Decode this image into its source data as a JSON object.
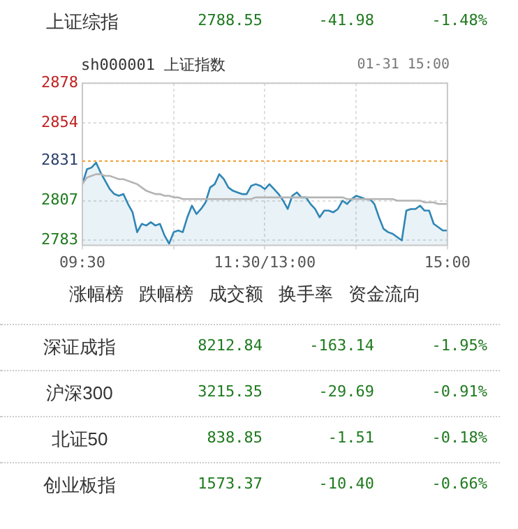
{
  "chart_data": [
    {
      "type": "other",
      "annotations": [
        "上证综指",
        "2788.55",
        "-41.98",
        "-1.48%"
      ]
    },
    {
      "type": "area",
      "title": "sh000001 上证指数",
      "annotations": [
        "01-31 15:00"
      ],
      "categories": [
        "09:30",
        null,
        null,
        null,
        null,
        null,
        null,
        null,
        null,
        null,
        null,
        null,
        null,
        null,
        null,
        null,
        null,
        null,
        null,
        null,
        null,
        null,
        null,
        null,
        null,
        null,
        null,
        null,
        null,
        null,
        null,
        null,
        null,
        null,
        null,
        null,
        null,
        null,
        null,
        null,
        "11:30/13:00",
        null,
        null,
        null,
        null,
        null,
        null,
        null,
        null,
        null,
        null,
        null,
        null,
        null,
        null,
        null,
        null,
        null,
        null,
        null,
        null,
        null,
        null,
        null,
        null,
        null,
        null,
        null,
        null,
        null,
        null,
        null,
        null,
        null,
        null,
        null,
        null,
        null,
        null,
        null,
        "15:00"
      ],
      "ylim": [
        2780,
        2878
      ],
      "yticks": [
        2783,
        2807,
        2831,
        2854,
        2878
      ],
      "grid": true,
      "marker": "none",
      "legend": false,
      "ref_lines": [
        {
          "axis": "y",
          "value": 2831,
          "color": "#f0a030",
          "line_style": "dashed"
        }
      ],
      "series": [
        {
          "type": "area",
          "color": "#2f86b5",
          "values": [
            2817,
            2826,
            2827,
            2830,
            2824,
            2819,
            2814,
            2811,
            2810,
            2811,
            2805,
            2800,
            2788,
            2793,
            2792,
            2794,
            2792,
            2793,
            2786,
            2781,
            2788,
            2789,
            2788,
            2797,
            2804,
            2799,
            2802,
            2806,
            2815,
            2817,
            2823,
            2820,
            2815,
            2813,
            2812,
            2811,
            2811,
            2816,
            2817,
            2816,
            2814,
            2817,
            2814,
            2811,
            2807,
            2802,
            2810,
            2812,
            2809,
            2809,
            2805,
            2802,
            2797,
            2801,
            2801,
            2800,
            2802,
            2807,
            2805,
            2808,
            2810,
            2809,
            2808,
            2808,
            2805,
            2797,
            2790,
            2788,
            2787,
            2785,
            2783,
            2801,
            2802,
            2802,
            2804,
            2801,
            2801,
            2793,
            2791,
            2789,
            2789
          ]
        },
        {
          "type": "line",
          "color": "#b4b4b4",
          "values": [
            2817,
            2821,
            2822,
            2823,
            2823,
            2822,
            2822,
            2821,
            2820,
            2820,
            2819,
            2818,
            2817,
            2815,
            2813,
            2812,
            2811,
            2811,
            2810,
            2810,
            2809,
            2809,
            2808,
            2808,
            2808,
            2808,
            2808,
            2808,
            2808,
            2808,
            2808,
            2808,
            2808,
            2808,
            2808,
            2808,
            2808,
            2808,
            2809,
            2809,
            2809,
            2809,
            2809,
            2809,
            2809,
            2809,
            2809,
            2809,
            2809,
            2809,
            2809,
            2809,
            2809,
            2809,
            2809,
            2809,
            2809,
            2809,
            2808,
            2808,
            2808,
            2808,
            2808,
            2808,
            2808,
            2808,
            2808,
            2808,
            2808,
            2807,
            2807,
            2807,
            2807,
            2807,
            2807,
            2806,
            2806,
            2806,
            2805,
            2805,
            2805
          ]
        }
      ]
    },
    {
      "type": "other",
      "annotations": [
        "涨幅榜",
        "跌幅榜",
        "成交额",
        "换手率",
        "资金流向"
      ]
    },
    {
      "type": "other",
      "annotations": [
        "深证成指",
        "8212.84",
        "-163.14",
        "-1.95%",
        "沪深300",
        "3215.35",
        "-29.69",
        "-0.91%",
        "北证50",
        "838.85",
        "-1.51",
        "-0.18%",
        "创业板指",
        "1573.37",
        "-10.40",
        "-0.66%"
      ]
    }
  ]
}
